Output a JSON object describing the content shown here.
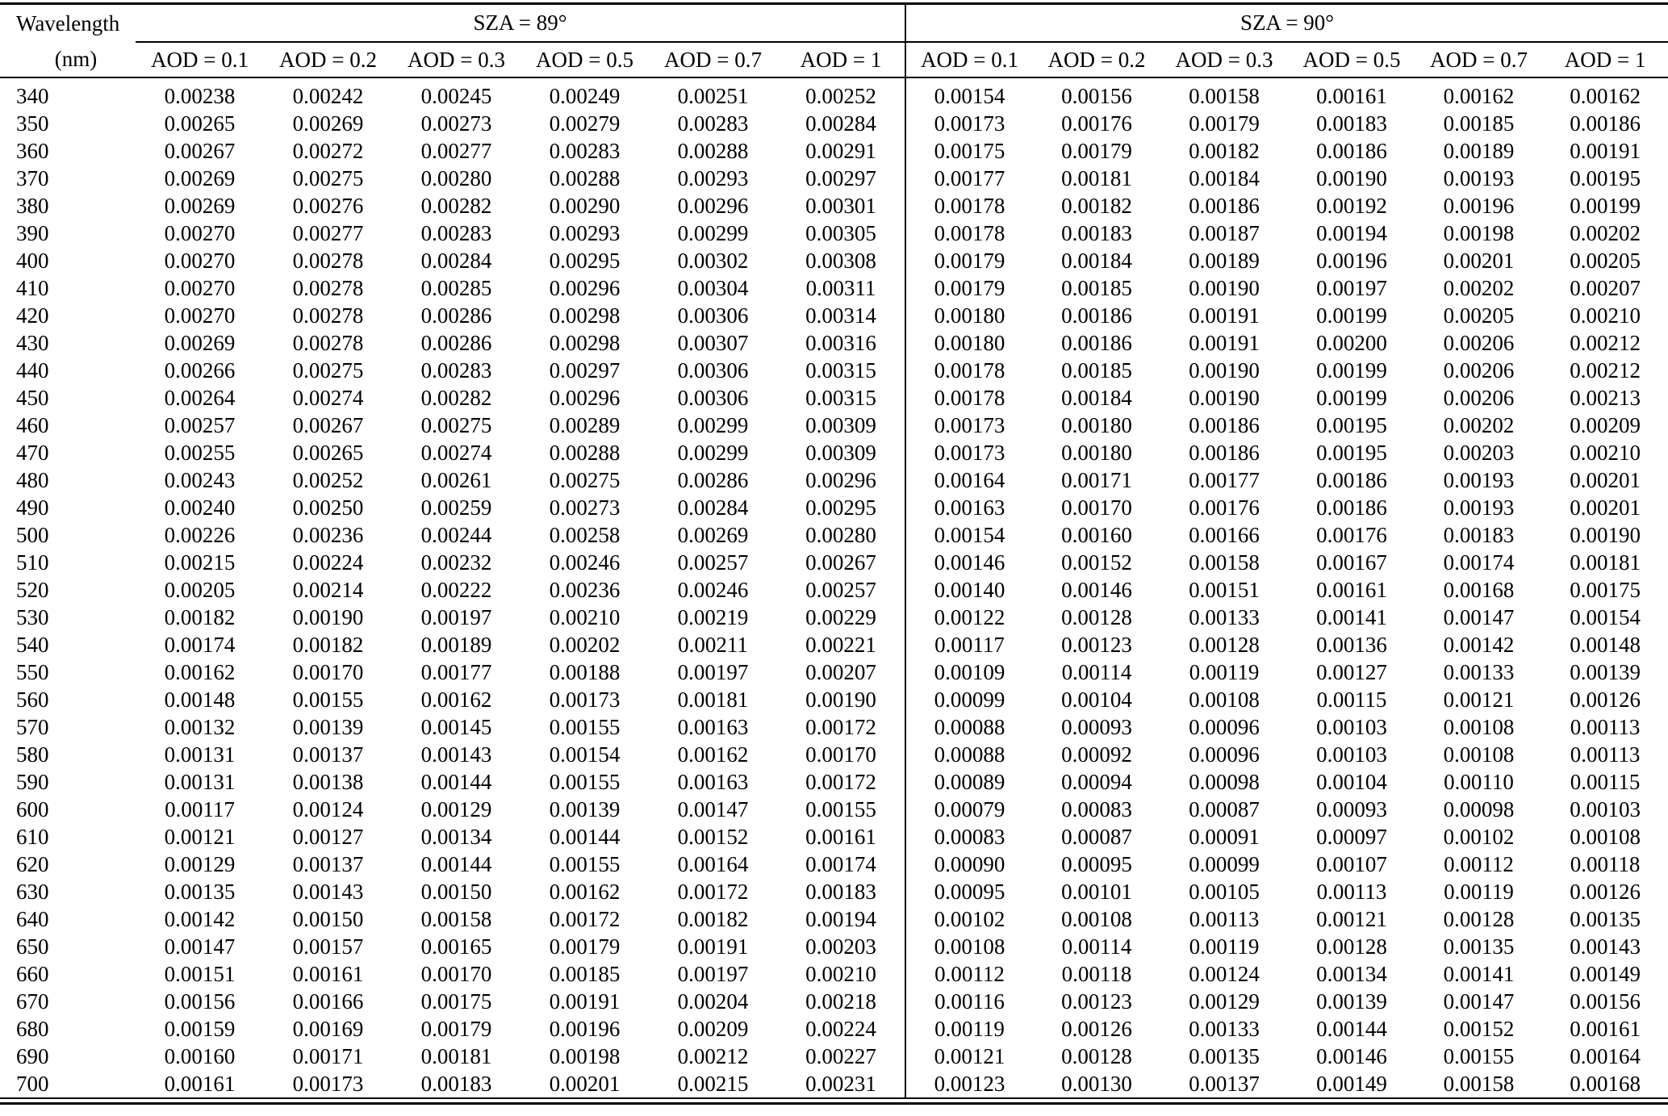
{
  "table": {
    "col1_header_line1": "Wavelength",
    "col1_header_line2": "(nm)",
    "groups": [
      {
        "label": "SZA = 89°",
        "aod_labels": [
          "AOD = 0.1",
          "AOD = 0.2",
          "AOD = 0.3",
          "AOD = 0.5",
          "AOD = 0.7",
          "AOD = 1"
        ]
      },
      {
        "label": "SZA = 90°",
        "aod_labels": [
          "AOD = 0.1",
          "AOD = 0.2",
          "AOD = 0.3",
          "AOD = 0.5",
          "AOD = 0.7",
          "AOD = 1"
        ]
      }
    ],
    "rows": [
      {
        "wavelength": "340",
        "sza89": [
          "0.00238",
          "0.00242",
          "0.00245",
          "0.00249",
          "0.00251",
          "0.00252"
        ],
        "sza90": [
          "0.00154",
          "0.00156",
          "0.00158",
          "0.00161",
          "0.00162",
          "0.00162"
        ]
      },
      {
        "wavelength": "350",
        "sza89": [
          "0.00265",
          "0.00269",
          "0.00273",
          "0.00279",
          "0.00283",
          "0.00284"
        ],
        "sza90": [
          "0.00173",
          "0.00176",
          "0.00179",
          "0.00183",
          "0.00185",
          "0.00186"
        ]
      },
      {
        "wavelength": "360",
        "sza89": [
          "0.00267",
          "0.00272",
          "0.00277",
          "0.00283",
          "0.00288",
          "0.00291"
        ],
        "sza90": [
          "0.00175",
          "0.00179",
          "0.00182",
          "0.00186",
          "0.00189",
          "0.00191"
        ]
      },
      {
        "wavelength": "370",
        "sza89": [
          "0.00269",
          "0.00275",
          "0.00280",
          "0.00288",
          "0.00293",
          "0.00297"
        ],
        "sza90": [
          "0.00177",
          "0.00181",
          "0.00184",
          "0.00190",
          "0.00193",
          "0.00195"
        ]
      },
      {
        "wavelength": "380",
        "sza89": [
          "0.00269",
          "0.00276",
          "0.00282",
          "0.00290",
          "0.00296",
          "0.00301"
        ],
        "sza90": [
          "0.00178",
          "0.00182",
          "0.00186",
          "0.00192",
          "0.00196",
          "0.00199"
        ]
      },
      {
        "wavelength": "390",
        "sza89": [
          "0.00270",
          "0.00277",
          "0.00283",
          "0.00293",
          "0.00299",
          "0.00305"
        ],
        "sza90": [
          "0.00178",
          "0.00183",
          "0.00187",
          "0.00194",
          "0.00198",
          "0.00202"
        ]
      },
      {
        "wavelength": "400",
        "sza89": [
          "0.00270",
          "0.00278",
          "0.00284",
          "0.00295",
          "0.00302",
          "0.00308"
        ],
        "sza90": [
          "0.00179",
          "0.00184",
          "0.00189",
          "0.00196",
          "0.00201",
          "0.00205"
        ]
      },
      {
        "wavelength": "410",
        "sza89": [
          "0.00270",
          "0.00278",
          "0.00285",
          "0.00296",
          "0.00304",
          "0.00311"
        ],
        "sza90": [
          "0.00179",
          "0.00185",
          "0.00190",
          "0.00197",
          "0.00202",
          "0.00207"
        ]
      },
      {
        "wavelength": "420",
        "sza89": [
          "0.00270",
          "0.00278",
          "0.00286",
          "0.00298",
          "0.00306",
          "0.00314"
        ],
        "sza90": [
          "0.00180",
          "0.00186",
          "0.00191",
          "0.00199",
          "0.00205",
          "0.00210"
        ]
      },
      {
        "wavelength": "430",
        "sza89": [
          "0.00269",
          "0.00278",
          "0.00286",
          "0.00298",
          "0.00307",
          "0.00316"
        ],
        "sza90": [
          "0.00180",
          "0.00186",
          "0.00191",
          "0.00200",
          "0.00206",
          "0.00212"
        ]
      },
      {
        "wavelength": "440",
        "sza89": [
          "0.00266",
          "0.00275",
          "0.00283",
          "0.00297",
          "0.00306",
          "0.00315"
        ],
        "sza90": [
          "0.00178",
          "0.00185",
          "0.00190",
          "0.00199",
          "0.00206",
          "0.00212"
        ]
      },
      {
        "wavelength": "450",
        "sza89": [
          "0.00264",
          "0.00274",
          "0.00282",
          "0.00296",
          "0.00306",
          "0.00315"
        ],
        "sza90": [
          "0.00178",
          "0.00184",
          "0.00190",
          "0.00199",
          "0.00206",
          "0.00213"
        ]
      },
      {
        "wavelength": "460",
        "sza89": [
          "0.00257",
          "0.00267",
          "0.00275",
          "0.00289",
          "0.00299",
          "0.00309"
        ],
        "sza90": [
          "0.00173",
          "0.00180",
          "0.00186",
          "0.00195",
          "0.00202",
          "0.00209"
        ]
      },
      {
        "wavelength": "470",
        "sza89": [
          "0.00255",
          "0.00265",
          "0.00274",
          "0.00288",
          "0.00299",
          "0.00309"
        ],
        "sza90": [
          "0.00173",
          "0.00180",
          "0.00186",
          "0.00195",
          "0.00203",
          "0.00210"
        ]
      },
      {
        "wavelength": "480",
        "sza89": [
          "0.00243",
          "0.00252",
          "0.00261",
          "0.00275",
          "0.00286",
          "0.00296"
        ],
        "sza90": [
          "0.00164",
          "0.00171",
          "0.00177",
          "0.00186",
          "0.00193",
          "0.00201"
        ]
      },
      {
        "wavelength": "490",
        "sza89": [
          "0.00240",
          "0.00250",
          "0.00259",
          "0.00273",
          "0.00284",
          "0.00295"
        ],
        "sza90": [
          "0.00163",
          "0.00170",
          "0.00176",
          "0.00186",
          "0.00193",
          "0.00201"
        ]
      },
      {
        "wavelength": "500",
        "sza89": [
          "0.00226",
          "0.00236",
          "0.00244",
          "0.00258",
          "0.00269",
          "0.00280"
        ],
        "sza90": [
          "0.00154",
          "0.00160",
          "0.00166",
          "0.00176",
          "0.00183",
          "0.00190"
        ]
      },
      {
        "wavelength": "510",
        "sza89": [
          "0.00215",
          "0.00224",
          "0.00232",
          "0.00246",
          "0.00257",
          "0.00267"
        ],
        "sza90": [
          "0.00146",
          "0.00152",
          "0.00158",
          "0.00167",
          "0.00174",
          "0.00181"
        ]
      },
      {
        "wavelength": "520",
        "sza89": [
          "0.00205",
          "0.00214",
          "0.00222",
          "0.00236",
          "0.00246",
          "0.00257"
        ],
        "sza90": [
          "0.00140",
          "0.00146",
          "0.00151",
          "0.00161",
          "0.00168",
          "0.00175"
        ]
      },
      {
        "wavelength": "530",
        "sza89": [
          "0.00182",
          "0.00190",
          "0.00197",
          "0.00210",
          "0.00219",
          "0.00229"
        ],
        "sza90": [
          "0.00122",
          "0.00128",
          "0.00133",
          "0.00141",
          "0.00147",
          "0.00154"
        ]
      },
      {
        "wavelength": "540",
        "sza89": [
          "0.00174",
          "0.00182",
          "0.00189",
          "0.00202",
          "0.00211",
          "0.00221"
        ],
        "sza90": [
          "0.00117",
          "0.00123",
          "0.00128",
          "0.00136",
          "0.00142",
          "0.00148"
        ]
      },
      {
        "wavelength": "550",
        "sza89": [
          "0.00162",
          "0.00170",
          "0.00177",
          "0.00188",
          "0.00197",
          "0.00207"
        ],
        "sza90": [
          "0.00109",
          "0.00114",
          "0.00119",
          "0.00127",
          "0.00133",
          "0.00139"
        ]
      },
      {
        "wavelength": "560",
        "sza89": [
          "0.00148",
          "0.00155",
          "0.00162",
          "0.00173",
          "0.00181",
          "0.00190"
        ],
        "sza90": [
          "0.00099",
          "0.00104",
          "0.00108",
          "0.00115",
          "0.00121",
          "0.00126"
        ]
      },
      {
        "wavelength": "570",
        "sza89": [
          "0.00132",
          "0.00139",
          "0.00145",
          "0.00155",
          "0.00163",
          "0.00172"
        ],
        "sza90": [
          "0.00088",
          "0.00093",
          "0.00096",
          "0.00103",
          "0.00108",
          "0.00113"
        ]
      },
      {
        "wavelength": "580",
        "sza89": [
          "0.00131",
          "0.00137",
          "0.00143",
          "0.00154",
          "0.00162",
          "0.00170"
        ],
        "sza90": [
          "0.00088",
          "0.00092",
          "0.00096",
          "0.00103",
          "0.00108",
          "0.00113"
        ]
      },
      {
        "wavelength": "590",
        "sza89": [
          "0.00131",
          "0.00138",
          "0.00144",
          "0.00155",
          "0.00163",
          "0.00172"
        ],
        "sza90": [
          "0.00089",
          "0.00094",
          "0.00098",
          "0.00104",
          "0.00110",
          "0.00115"
        ]
      },
      {
        "wavelength": "600",
        "sza89": [
          "0.00117",
          "0.00124",
          "0.00129",
          "0.00139",
          "0.00147",
          "0.00155"
        ],
        "sza90": [
          "0.00079",
          "0.00083",
          "0.00087",
          "0.00093",
          "0.00098",
          "0.00103"
        ]
      },
      {
        "wavelength": "610",
        "sza89": [
          "0.00121",
          "0.00127",
          "0.00134",
          "0.00144",
          "0.00152",
          "0.00161"
        ],
        "sza90": [
          "0.00083",
          "0.00087",
          "0.00091",
          "0.00097",
          "0.00102",
          "0.00108"
        ]
      },
      {
        "wavelength": "620",
        "sza89": [
          "0.00129",
          "0.00137",
          "0.00144",
          "0.00155",
          "0.00164",
          "0.00174"
        ],
        "sza90": [
          "0.00090",
          "0.00095",
          "0.00099",
          "0.00107",
          "0.00112",
          "0.00118"
        ]
      },
      {
        "wavelength": "630",
        "sza89": [
          "0.00135",
          "0.00143",
          "0.00150",
          "0.00162",
          "0.00172",
          "0.00183"
        ],
        "sza90": [
          "0.00095",
          "0.00101",
          "0.00105",
          "0.00113",
          "0.00119",
          "0.00126"
        ]
      },
      {
        "wavelength": "640",
        "sza89": [
          "0.00142",
          "0.00150",
          "0.00158",
          "0.00172",
          "0.00182",
          "0.00194"
        ],
        "sza90": [
          "0.00102",
          "0.00108",
          "0.00113",
          "0.00121",
          "0.00128",
          "0.00135"
        ]
      },
      {
        "wavelength": "650",
        "sza89": [
          "0.00147",
          "0.00157",
          "0.00165",
          "0.00179",
          "0.00191",
          "0.00203"
        ],
        "sza90": [
          "0.00108",
          "0.00114",
          "0.00119",
          "0.00128",
          "0.00135",
          "0.00143"
        ]
      },
      {
        "wavelength": "660",
        "sza89": [
          "0.00151",
          "0.00161",
          "0.00170",
          "0.00185",
          "0.00197",
          "0.00210"
        ],
        "sza90": [
          "0.00112",
          "0.00118",
          "0.00124",
          "0.00134",
          "0.00141",
          "0.00149"
        ]
      },
      {
        "wavelength": "670",
        "sza89": [
          "0.00156",
          "0.00166",
          "0.00175",
          "0.00191",
          "0.00204",
          "0.00218"
        ],
        "sza90": [
          "0.00116",
          "0.00123",
          "0.00129",
          "0.00139",
          "0.00147",
          "0.00156"
        ]
      },
      {
        "wavelength": "680",
        "sza89": [
          "0.00159",
          "0.00169",
          "0.00179",
          "0.00196",
          "0.00209",
          "0.00224"
        ],
        "sza90": [
          "0.00119",
          "0.00126",
          "0.00133",
          "0.00144",
          "0.00152",
          "0.00161"
        ]
      },
      {
        "wavelength": "690",
        "sza89": [
          "0.00160",
          "0.00171",
          "0.00181",
          "0.00198",
          "0.00212",
          "0.00227"
        ],
        "sza90": [
          "0.00121",
          "0.00128",
          "0.00135",
          "0.00146",
          "0.00155",
          "0.00164"
        ]
      },
      {
        "wavelength": "700",
        "sza89": [
          "0.00161",
          "0.00173",
          "0.00183",
          "0.00201",
          "0.00215",
          "0.00231"
        ],
        "sza90": [
          "0.00123",
          "0.00130",
          "0.00137",
          "0.00149",
          "0.00158",
          "0.00168"
        ]
      }
    ]
  }
}
